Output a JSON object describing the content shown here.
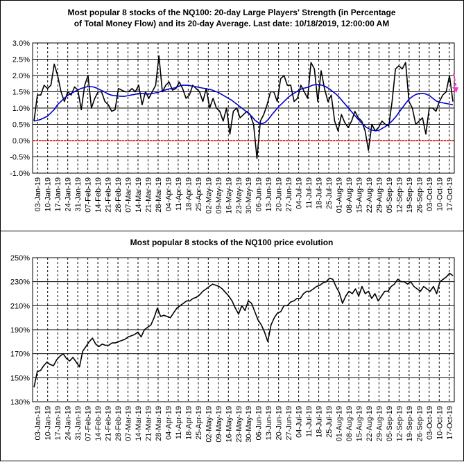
{
  "chart_data": [
    {
      "type": "line",
      "title_lines": [
        "Most popular 8 stocks of the NQ100: 20-day Large Players' Strength (in Percentage",
        "of Total Money Flow) and its 20-day Average. Last date: 10/18/2019, 12:00:00 AM"
      ],
      "ylim": [
        -1.0,
        3.0
      ],
      "y_ticks": [
        -1.0,
        -0.5,
        0.0,
        0.5,
        1.0,
        1.5,
        2.0,
        2.5,
        3.0
      ],
      "y_tick_labels": [
        "-1.0%",
        "-0.5%",
        "0.0%",
        "0.5%",
        "1.0%",
        "1.5%",
        "2.0%",
        "2.5%",
        "3.0%"
      ],
      "x_tick_labels": [
        "03-Jan-19",
        "10-Jan-19",
        "17-Jan-19",
        "24-Jan-19",
        "31-Jan-19",
        "07-Feb-19",
        "14-Feb-19",
        "21-Feb-19",
        "28-Feb-19",
        "07-Mar-19",
        "14-Mar-19",
        "21-Mar-19",
        "28-Mar-19",
        "04-Apr-19",
        "11-Apr-19",
        "18-Apr-19",
        "25-Apr-19",
        "02-May-19",
        "09-May-19",
        "16-May-19",
        "23-May-19",
        "30-May-19",
        "06-Jun-19",
        "13-Jun-19",
        "20-Jun-19",
        "27-Jun-19",
        "04-Jul-19",
        "11-Jul-19",
        "18-Jul-19",
        "25-Jul-19",
        "01-Aug-19",
        "08-Aug-19",
        "15-Aug-19",
        "22-Aug-19",
        "29-Aug-19",
        "05-Sep-19",
        "12-Sep-19",
        "19-Sep-19",
        "26-Sep-19",
        "03-Oct-19",
        "10-Oct-19",
        "17-Oct-19"
      ],
      "grid": true,
      "series": [
        {
          "color": "#000000",
          "values": [
            0.6,
            1.4,
            1.4,
            1.7,
            1.6,
            1.7,
            2.35,
            2.0,
            1.5,
            1.2,
            1.5,
            1.4,
            1.65,
            1.55,
            0.95,
            1.7,
            2.0,
            1.0,
            1.3,
            1.5,
            1.5,
            1.2,
            1.1,
            0.9,
            0.95,
            1.6,
            1.55,
            1.5,
            1.5,
            1.6,
            1.5,
            1.7,
            1.1,
            1.5,
            1.3,
            1.5,
            1.7,
            2.6,
            1.5,
            1.7,
            1.8,
            1.55,
            1.6,
            1.8,
            1.6,
            1.3,
            1.4,
            1.7,
            1.6,
            1.5,
            1.2,
            1.6,
            1.0,
            1.3,
            1.0,
            0.9,
            0.6,
            1.0,
            0.2,
            0.9,
            1.0,
            0.7,
            0.8,
            0.9,
            0.8,
            0.5,
            -0.55,
            0.6,
            0.8,
            1.1,
            1.5,
            1.5,
            1.2,
            1.9,
            2.0,
            1.7,
            1.7,
            1.2,
            1.3,
            1.7,
            1.5,
            1.3,
            2.4,
            2.2,
            1.2,
            2.15,
            1.6,
            1.2,
            1.4,
            0.6,
            0.3,
            0.8,
            0.55,
            0.4,
            0.6,
            0.9,
            0.7,
            0.6,
            0.3,
            -0.3,
            0.5,
            0.3,
            0.4,
            0.6,
            0.5,
            0.45,
            1.2,
            2.2,
            2.3,
            2.2,
            2.4,
            1.2,
            1.0,
            0.5,
            0.6,
            0.7,
            0.2,
            1.0,
            1.0,
            0.9,
            1.2,
            1.4,
            1.5,
            2.0,
            1.2
          ]
        },
        {
          "color": "#0000cc",
          "values": [
            0.6,
            0.62,
            0.65,
            0.7,
            0.75,
            0.85,
            0.95,
            1.1,
            1.2,
            1.3,
            1.38,
            1.45,
            1.5,
            1.55,
            1.6,
            1.63,
            1.66,
            1.66,
            1.64,
            1.6,
            1.55,
            1.5,
            1.44,
            1.4,
            1.38,
            1.37,
            1.36,
            1.36,
            1.38,
            1.4,
            1.42,
            1.44,
            1.45,
            1.44,
            1.43,
            1.44,
            1.46,
            1.48,
            1.52,
            1.55,
            1.58,
            1.6,
            1.62,
            1.66,
            1.7,
            1.7,
            1.7,
            1.68,
            1.66,
            1.64,
            1.62,
            1.6,
            1.58,
            1.56,
            1.52,
            1.48,
            1.42,
            1.36,
            1.3,
            1.24,
            1.16,
            1.08,
            1.0,
            0.92,
            0.84,
            0.74,
            0.62,
            0.55,
            0.52,
            0.56,
            0.66,
            0.8,
            0.92,
            1.04,
            1.14,
            1.24,
            1.34,
            1.42,
            1.48,
            1.54,
            1.6,
            1.62,
            1.65,
            1.7,
            1.72,
            1.72,
            1.7,
            1.66,
            1.6,
            1.52,
            1.44,
            1.34,
            1.22,
            1.1,
            0.98,
            0.86,
            0.74,
            0.62,
            0.52,
            0.42,
            0.36,
            0.32,
            0.3,
            0.32,
            0.38,
            0.44,
            0.52,
            0.62,
            0.74,
            0.88,
            1.02,
            1.16,
            1.28,
            1.36,
            1.42,
            1.45,
            1.45,
            1.43,
            1.38,
            1.3,
            1.22,
            1.18,
            1.16,
            1.14,
            1.12,
            1.1
          ]
        }
      ]
    },
    {
      "type": "line",
      "title": "Most popular 8 stocks of the NQ100 price evolution",
      "ylim": [
        130,
        250
      ],
      "y_ticks": [
        130,
        150,
        170,
        190,
        210,
        230,
        250
      ],
      "y_tick_labels": [
        "130%",
        "150%",
        "170%",
        "190%",
        "210%",
        "230%",
        "250%"
      ],
      "x_tick_labels": [
        "03-Jan-19",
        "10-Jan-19",
        "17-Jan-19",
        "24-Jan-19",
        "31-Jan-19",
        "07-Feb-19",
        "14-Feb-19",
        "21-Feb-19",
        "28-Feb-19",
        "07-Mar-19",
        "14-Mar-19",
        "21-Mar-19",
        "28-Mar-19",
        "04-Apr-19",
        "11-Apr-19",
        "18-Apr-19",
        "25-Apr-19",
        "02-May-19",
        "09-May-19",
        "16-May-19",
        "23-May-19",
        "30-May-19",
        "06-Jun-19",
        "13-Jun-19",
        "20-Jun-19",
        "27-Jun-19",
        "04-Jul-19",
        "11-Jul-19",
        "18-Jul-19",
        "25-Jul-19",
        "01-Aug-19",
        "08-Aug-19",
        "15-Aug-19",
        "22-Aug-19",
        "29-Aug-19",
        "05-Sep-19",
        "12-Sep-19",
        "19-Sep-19",
        "26-Sep-19",
        "03-Oct-19",
        "10-Oct-19",
        "17-Oct-19"
      ],
      "grid": true,
      "series": [
        {
          "color": "#000000",
          "values": [
            142,
            155,
            156,
            160,
            163,
            161,
            160,
            165,
            168,
            170,
            166,
            164,
            167,
            163,
            159,
            172,
            176,
            180,
            183,
            178,
            176,
            178,
            177,
            177,
            179,
            179,
            180,
            181,
            182,
            184,
            185,
            186,
            188,
            184,
            190,
            192,
            194,
            200,
            208,
            201,
            202,
            201,
            200,
            204,
            208,
            210,
            212,
            214,
            214,
            216,
            217,
            219,
            222,
            224,
            226,
            228,
            227,
            226,
            224,
            221,
            218,
            214,
            208,
            203,
            210,
            206,
            214,
            212,
            205,
            198,
            194,
            188,
            180,
            194,
            200,
            204,
            205,
            210,
            210,
            213,
            214,
            216,
            216,
            220,
            222,
            222,
            224,
            226,
            227,
            229,
            230,
            233,
            232,
            226,
            221,
            212,
            218,
            222,
            220,
            224,
            218,
            226,
            220,
            222,
            216,
            220,
            214,
            218,
            222,
            222,
            226,
            228,
            232,
            230,
            230,
            228,
            230,
            226,
            224,
            222,
            226,
            224,
            222,
            226,
            220,
            230,
            232,
            234,
            237,
            235
          ]
        }
      ]
    }
  ]
}
